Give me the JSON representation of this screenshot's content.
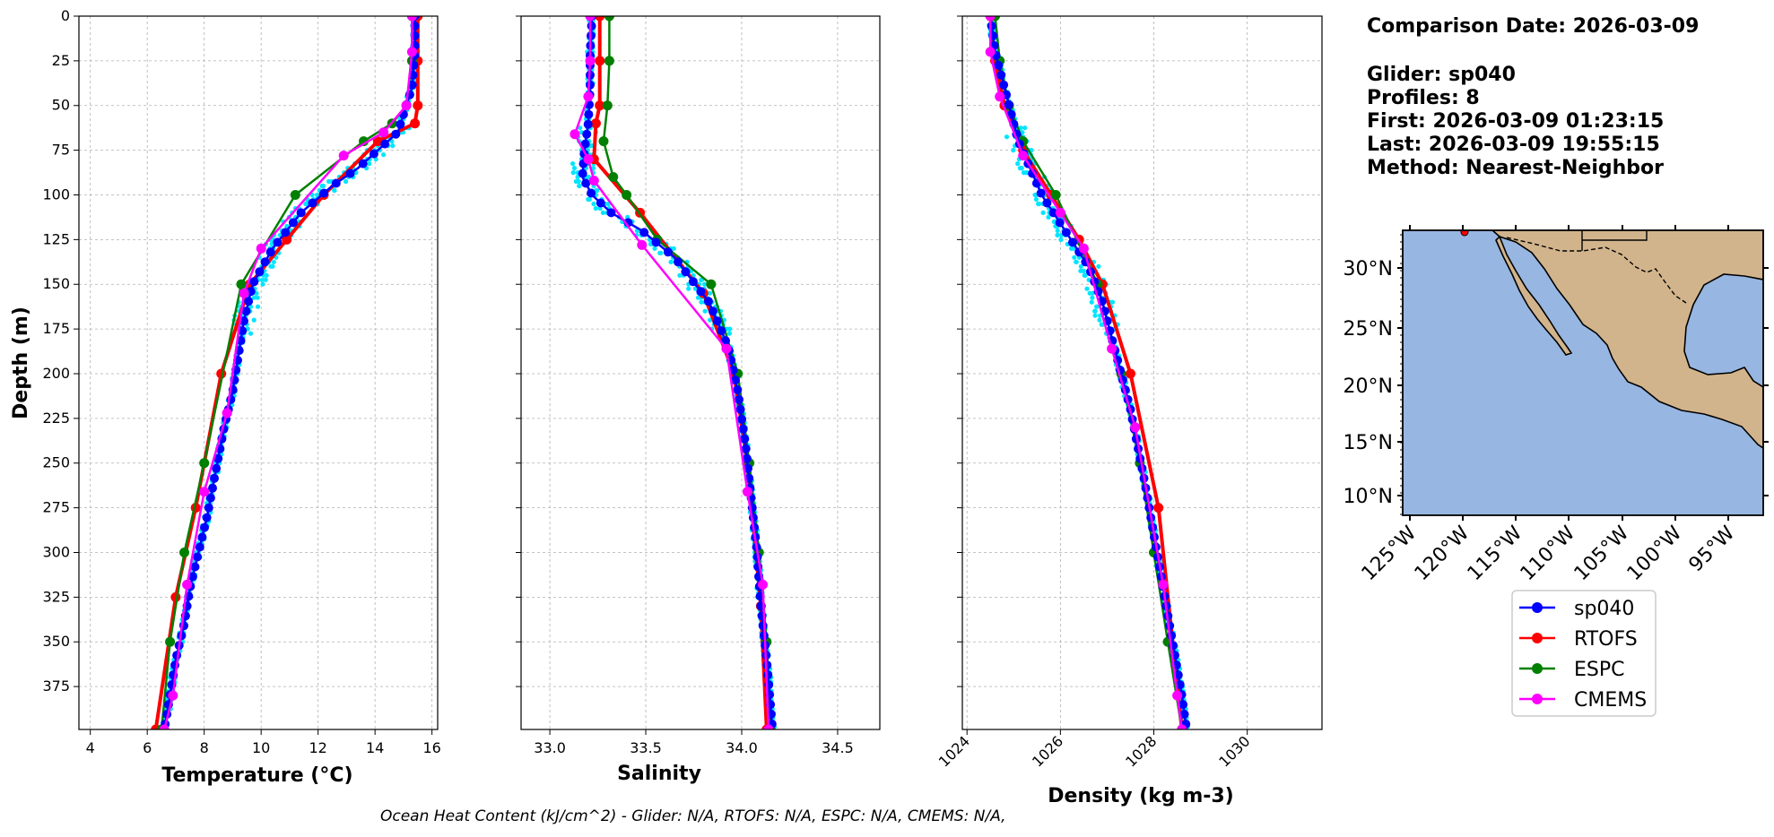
{
  "info": {
    "date_line": "Comparison Date: 2026-03-09",
    "glider_line": "Glider: sp040",
    "profiles_line": "Profiles: 8",
    "first_line": "First: 2026-03-09 01:23:15",
    "last_line": "Last: 2026-03-09 19:55:15",
    "method_line": "Method: Nearest-Neighbor"
  },
  "footer": "Ocean Heat Content (kJ/cm^2) - Glider: N/A,  RTOFS: N/A,  ESPC: N/A,  CMEMS: N/A,",
  "legend": [
    {
      "label": "sp040",
      "color": "#0000ff"
    },
    {
      "label": "RTOFS",
      "color": "#ff0000"
    },
    {
      "label": "ESPC",
      "color": "#008000"
    },
    {
      "label": "CMEMS",
      "color": "#ff00ff"
    }
  ],
  "colors": {
    "glider_scatter": "#00e5ff",
    "ocean": "#97b6e1",
    "land": "#d2b48c"
  },
  "chart_data": [
    {
      "type": "line",
      "xlabel": "Temperature (°C)",
      "ylabel": "Depth (m)",
      "xlim": [
        3.6,
        16.2
      ],
      "ylim": [
        399,
        0
      ],
      "xticks": [
        4,
        6,
        8,
        10,
        12,
        14,
        16
      ],
      "yticks": [
        0,
        25,
        50,
        75,
        100,
        125,
        150,
        175,
        200,
        225,
        250,
        275,
        300,
        325,
        350,
        375
      ],
      "grid": true,
      "series": [
        {
          "name": "sp040",
          "x": [
            15.4,
            15.4,
            15.3,
            15.0,
            14.8,
            14.1,
            13.4,
            12.5,
            11.4,
            10.4,
            9.7,
            9.4,
            9.2,
            9.0,
            8.7,
            8.4,
            8.1,
            7.8,
            7.5,
            7.3,
            7.0,
            6.8,
            6.6
          ],
          "y": [
            0,
            20,
            40,
            55,
            65,
            75,
            85,
            95,
            110,
            130,
            150,
            170,
            190,
            210,
            230,
            255,
            280,
            300,
            320,
            340,
            360,
            380,
            399
          ]
        },
        {
          "name": "RTOFS",
          "x": [
            15.5,
            15.5,
            15.5,
            15.4,
            14.1,
            12.2,
            10.9,
            9.6,
            8.6,
            7.7,
            7.0,
            6.3
          ],
          "y": [
            0,
            25,
            50,
            60,
            70,
            100,
            125,
            150,
            200,
            275,
            325,
            399
          ]
        },
        {
          "name": "ESPC",
          "x": [
            15.3,
            15.3,
            15.1,
            14.6,
            13.6,
            11.2,
            9.3,
            8.0,
            7.3,
            6.8,
            6.5
          ],
          "y": [
            0,
            25,
            50,
            60,
            70,
            100,
            150,
            250,
            300,
            350,
            399
          ]
        },
        {
          "name": "CMEMS",
          "x": [
            15.3,
            15.3,
            15.1,
            14.3,
            12.9,
            10.0,
            9.4,
            8.8,
            8.0,
            7.4,
            6.9,
            6.6
          ],
          "y": [
            0,
            20,
            50,
            65,
            78,
            130,
            155,
            222,
            266,
            318,
            380,
            399
          ]
        }
      ]
    },
    {
      "type": "line",
      "xlabel": "Salinity",
      "xlim": [
        32.85,
        34.72
      ],
      "ylim": [
        399,
        0
      ],
      "xticks": [
        33.0,
        33.5,
        34.0,
        34.5
      ],
      "xtick_labels": [
        "33.0",
        "33.5",
        "34.0",
        "34.5"
      ],
      "grid": true,
      "series": [
        {
          "name": "sp040",
          "x": [
            33.22,
            33.21,
            33.21,
            33.2,
            33.18,
            33.17,
            33.22,
            33.32,
            33.48,
            33.65,
            33.83,
            33.93,
            33.98,
            34.02,
            34.05,
            34.08,
            34.1,
            34.13,
            34.15,
            34.16
          ],
          "y": [
            0,
            20,
            40,
            60,
            75,
            90,
            100,
            110,
            120,
            135,
            160,
            185,
            210,
            240,
            270,
            300,
            330,
            360,
            385,
            399
          ]
        },
        {
          "name": "RTOFS",
          "x": [
            33.26,
            33.26,
            33.26,
            33.24,
            33.23,
            33.47,
            33.8,
            33.96,
            34.03,
            34.1,
            34.13
          ],
          "y": [
            0,
            25,
            50,
            60,
            80,
            110,
            155,
            200,
            250,
            330,
            399
          ]
        },
        {
          "name": "ESPC",
          "x": [
            33.31,
            33.31,
            33.3,
            33.28,
            33.33,
            33.4,
            33.56,
            33.84,
            33.98,
            34.04,
            34.09,
            34.13,
            34.15
          ],
          "y": [
            0,
            25,
            50,
            70,
            90,
            100,
            125,
            150,
            200,
            250,
            300,
            350,
            399
          ]
        },
        {
          "name": "CMEMS",
          "x": [
            33.21,
            33.21,
            33.2,
            33.13,
            33.2,
            33.23,
            33.48,
            33.92,
            34.03,
            34.11,
            34.14
          ],
          "y": [
            0,
            25,
            45,
            66,
            80,
            92,
            128,
            186,
            266,
            318,
            399
          ]
        }
      ]
    },
    {
      "type": "line",
      "xlabel": "Density (kg m-3)",
      "xlim": [
        1023.9,
        1031.6
      ],
      "ylim": [
        399,
        0
      ],
      "xticks": [
        1024,
        1026,
        1028,
        1030
      ],
      "xtick_labels": [
        "1024",
        "1026",
        "1028",
        "1030"
      ],
      "grid": true,
      "series": [
        {
          "name": "sp040",
          "x": [
            1024.5,
            1024.6,
            1024.8,
            1025.1,
            1025.6,
            1026.1,
            1026.6,
            1026.9,
            1027.2,
            1027.5,
            1027.8,
            1028.0,
            1028.2,
            1028.4,
            1028.6,
            1028.7
          ],
          "y": [
            0,
            20,
            40,
            70,
            100,
            120,
            140,
            160,
            190,
            220,
            260,
            290,
            320,
            350,
            380,
            399
          ]
        },
        {
          "name": "RTOFS",
          "x": [
            1024.5,
            1024.6,
            1024.8,
            1025.2,
            1025.8,
            1026.4,
            1026.9,
            1027.5,
            1028.1,
            1028.6
          ],
          "y": [
            0,
            25,
            50,
            75,
            100,
            125,
            150,
            200,
            275,
            399
          ]
        },
        {
          "name": "ESPC",
          "x": [
            1024.6,
            1024.7,
            1024.9,
            1025.2,
            1025.9,
            1026.8,
            1027.3,
            1027.7,
            1028.0,
            1028.3,
            1028.6
          ],
          "y": [
            0,
            25,
            50,
            70,
            100,
            150,
            200,
            250,
            300,
            350,
            399
          ]
        },
        {
          "name": "CMEMS",
          "x": [
            1024.5,
            1024.5,
            1024.7,
            1025.2,
            1026.0,
            1026.5,
            1027.1,
            1027.6,
            1028.2,
            1028.5,
            1028.6
          ],
          "y": [
            0,
            20,
            45,
            78,
            110,
            130,
            186,
            230,
            318,
            380,
            399
          ]
        }
      ]
    }
  ],
  "map": {
    "lat_labels": [
      "30°N",
      "25°N",
      "20°N",
      "15°N",
      "10°N"
    ],
    "lon_labels": [
      "125°W",
      "120°W",
      "115°W",
      "110°W",
      "105°W",
      "100°W",
      "95°W"
    ],
    "glider_marker": {
      "lon": -120.0,
      "lat": 33.0
    }
  }
}
